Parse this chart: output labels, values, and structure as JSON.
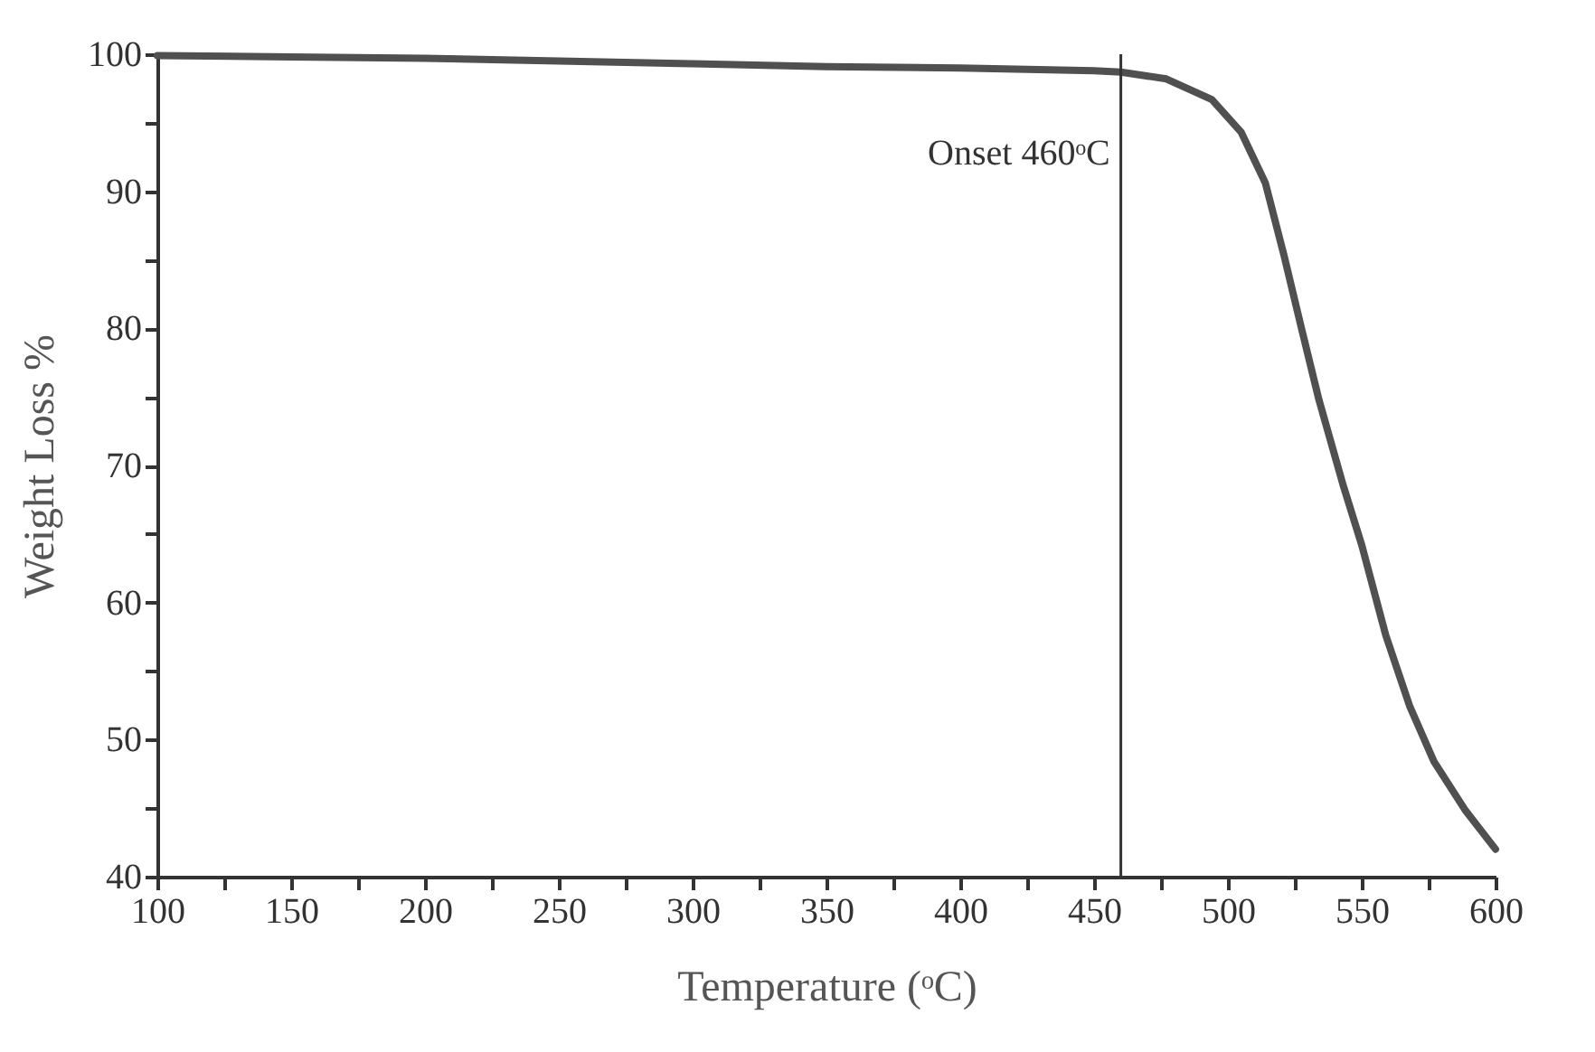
{
  "chart_data": {
    "type": "line",
    "xlabel": "Temperature (ᵒC)",
    "ylabel": "Weight Loss %",
    "x": [
      100,
      150,
      200,
      250,
      300,
      350,
      400,
      450,
      460,
      477,
      494,
      505,
      514,
      521,
      527.5,
      534,
      543,
      550,
      559,
      568,
      577,
      588.5,
      600
    ],
    "series": [
      {
        "color": "#505050",
        "values": [
          99.9,
          99.8,
          99.7,
          99.5,
          99.3,
          99.1,
          99.0,
          98.8,
          98.7,
          98.2,
          96.7,
          94.3,
          90.6,
          85.3,
          80.0,
          74.8,
          68.6,
          64.2,
          57.6,
          52.4,
          48.4,
          44.9,
          42.0
        ]
      }
    ],
    "xlim": [
      100,
      600
    ],
    "ylim": [
      40,
      100
    ],
    "xticks": [
      100,
      {
        "value": 125,
        "label": null
      },
      150,
      {
        "value": 175,
        "label": null
      },
      200,
      {
        "value": 225,
        "label": null
      },
      250,
      {
        "value": 275,
        "label": null
      },
      300,
      {
        "value": 325,
        "label": null
      },
      350,
      {
        "value": 375,
        "label": null
      },
      400,
      {
        "value": 425,
        "label": null
      },
      450,
      {
        "value": 475,
        "label": null
      },
      500,
      {
        "value": 525,
        "label": null
      },
      550,
      {
        "value": 575,
        "label": null
      },
      600
    ],
    "yticks": [
      40,
      {
        "value": 45,
        "label": null
      },
      50,
      {
        "value": 55,
        "label": null
      },
      60,
      {
        "value": 65,
        "label": null
      },
      70,
      {
        "value": 75,
        "label": null
      },
      80,
      {
        "value": 85,
        "label": null
      },
      90,
      {
        "value": 95,
        "label": null
      },
      100
    ],
    "ref_lines": [
      {
        "axis": "x",
        "value": 460,
        "label": "Onset 460ᵒC",
        "color": "#333333"
      }
    ],
    "grid": false
  }
}
